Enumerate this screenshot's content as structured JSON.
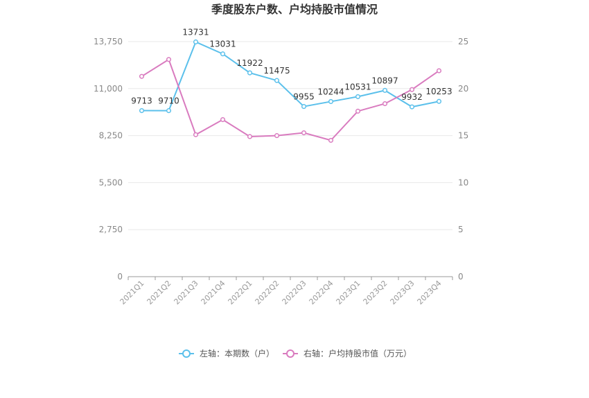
{
  "chart_data": {
    "type": "line",
    "title": "季度股东户数、户均持股市值情况",
    "categories": [
      "2021Q1",
      "2021Q2",
      "2021Q3",
      "2021Q4",
      "2022Q1",
      "2022Q2",
      "2022Q3",
      "2022Q4",
      "2023Q1",
      "2023Q2",
      "2023Q3",
      "2023Q4"
    ],
    "series": [
      {
        "name": "左轴：本期数（户）",
        "axis": "left",
        "color": "#5bc0eb",
        "values": [
          9713,
          9710,
          13731,
          13031,
          11922,
          11475,
          9955,
          10244,
          10531,
          10897,
          9932,
          10253
        ],
        "value_labels": [
          "9713",
          "9710",
          "13731",
          "13031",
          "11922",
          "11475",
          "9955",
          "10244",
          "10531",
          "10897",
          "9932",
          "10253"
        ],
        "labeled": [
          true,
          true,
          true,
          true,
          true,
          true,
          true,
          true,
          true,
          true,
          true,
          true
        ]
      },
      {
        "name": "右轴：户均持股市值（万元）",
        "axis": "right",
        "color": "#d97bbf",
        "values": [
          21.3,
          23.1,
          15.1,
          16.7,
          14.9,
          15.0,
          15.3,
          14.5,
          17.6,
          18.4,
          19.9,
          21.9
        ]
      }
    ],
    "y_left": {
      "min": 0,
      "max": 13750,
      "ticks": [
        0,
        2750,
        5500,
        8250,
        11000,
        13750
      ],
      "tick_labels": [
        "0",
        "2,750",
        "5,500",
        "8,250",
        "11,000",
        "13,750"
      ]
    },
    "y_right": {
      "min": 0,
      "max": 25,
      "ticks": [
        0,
        5,
        10,
        15,
        20,
        25
      ],
      "tick_labels": [
        "0",
        "5",
        "10",
        "15",
        "20",
        "25"
      ]
    },
    "grid": true,
    "legend_position": "bottom"
  }
}
